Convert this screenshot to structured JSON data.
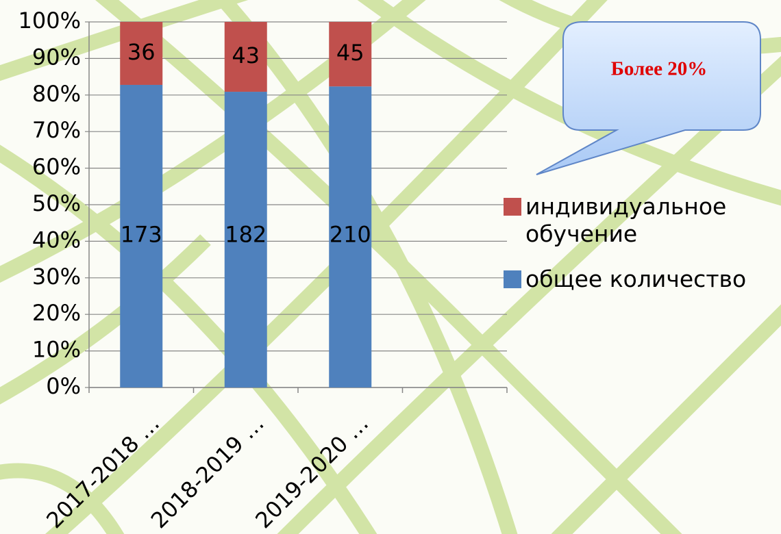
{
  "chart_data": {
    "type": "bar",
    "stacking": "percent",
    "annotation": "Более 20%",
    "categories": [
      "2017-2018 …",
      "2018-2019 …",
      "2019-2020 …",
      null
    ],
    "series": [
      {
        "name": "общее количество",
        "color": "#4f81bd",
        "values": [
          173,
          182,
          210,
          null
        ]
      },
      {
        "name": "индивидуальное обучение",
        "color": "#c0504d",
        "values": [
          36,
          43,
          45,
          null
        ]
      }
    ],
    "ylim": [
      0,
      100
    ],
    "yticks": [
      {
        "value": 0,
        "label": "0%"
      },
      {
        "value": 10,
        "label": "10%"
      },
      {
        "value": 20,
        "label": "20%"
      },
      {
        "value": 30,
        "label": "30%"
      },
      {
        "value": 40,
        "label": "40%"
      },
      {
        "value": 50,
        "label": "50%"
      },
      {
        "value": 60,
        "label": "60%"
      },
      {
        "value": 70,
        "label": "70%"
      },
      {
        "value": 80,
        "label": "80%"
      },
      {
        "value": 90,
        "label": "90%"
      },
      {
        "value": 100,
        "label": "100%"
      }
    ],
    "grid": true,
    "legend": "right"
  }
}
